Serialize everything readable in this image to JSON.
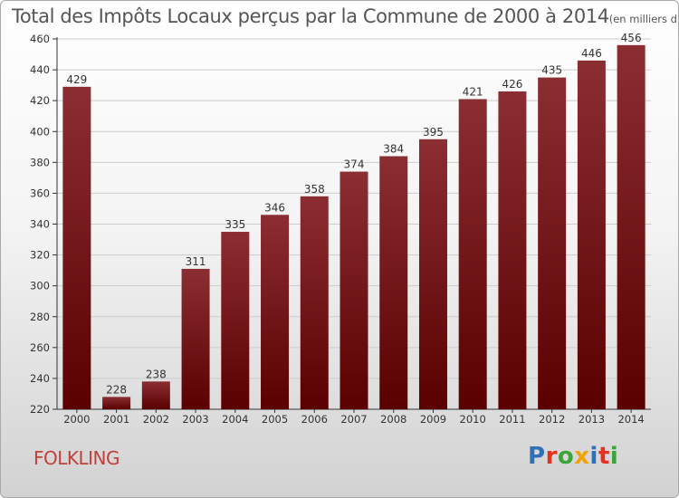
{
  "title": "Total des Impôts Locaux perçus par la Commune de 2000 à 2014",
  "title_unit": "(en milliers d'€)",
  "commune": "FOLKLING",
  "logo": {
    "text": "Proxiti",
    "letter_colors": [
      "#2f6fb6",
      "#e2311d",
      "#3aa63a",
      "#f2a300",
      "#2f6fb6",
      "#e2311d",
      "#3aa63a"
    ]
  },
  "colors": {
    "bar_dark": "#5a0000",
    "bar_light": "#8b2e33",
    "axis": "#333333",
    "text": "#333333",
    "grid": "#cccccc"
  },
  "chart_data": {
    "type": "bar",
    "title": "Total des Impôts Locaux perçus par la Commune de 2000 à 2014",
    "xlabel": "",
    "ylabel": "",
    "categories": [
      "2000",
      "2001",
      "2002",
      "2003",
      "2004",
      "2005",
      "2006",
      "2007",
      "2008",
      "2009",
      "2010",
      "2011",
      "2012",
      "2013",
      "2014"
    ],
    "values": [
      429,
      228,
      238,
      311,
      335,
      346,
      358,
      374,
      384,
      395,
      421,
      426,
      435,
      446,
      456
    ],
    "ylim": [
      220,
      460
    ],
    "yticks": [
      220,
      240,
      260,
      280,
      300,
      320,
      340,
      360,
      380,
      400,
      420,
      440,
      460
    ],
    "grid": true,
    "legend": "none"
  }
}
